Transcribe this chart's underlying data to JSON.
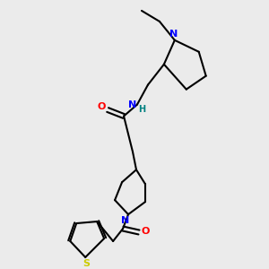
{
  "background_color": "#ebebeb",
  "atom_colors": {
    "N": "#0000ff",
    "O": "#ff0000",
    "S": "#cccc00",
    "H": "#008080"
  },
  "bond_lw": 1.5,
  "font_size": 8
}
